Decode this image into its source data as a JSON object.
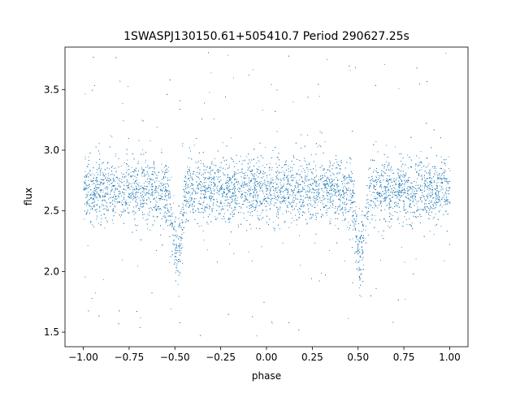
{
  "chart_data": {
    "type": "scatter",
    "title": "1SWASPJ130150.61+505410.7 Period 290627.25s",
    "xlabel": "phase",
    "ylabel": "flux",
    "xlim": [
      -1.1,
      1.1
    ],
    "ylim": [
      1.38,
      3.85
    ],
    "xticks": [
      -1.0,
      -0.75,
      -0.5,
      -0.25,
      0.0,
      0.25,
      0.5,
      0.75,
      1.0
    ],
    "xtick_labels": [
      "−1.00",
      "−0.75",
      "−0.50",
      "−0.25",
      "0.00",
      "0.25",
      "0.50",
      "0.75",
      "1.00"
    ],
    "yticks": [
      1.5,
      2.0,
      2.5,
      3.0,
      3.5
    ],
    "ytick_labels": [
      "1.5",
      "2.0",
      "2.5",
      "3.0",
      "3.5"
    ],
    "grid": false,
    "marker_color": "#1f77b4",
    "series": [
      {
        "description": "phase-folded light curve, mirrored over two cycles",
        "baseline_flux": 2.67,
        "scatter_sigma": 0.13,
        "dips": [
          {
            "phase_center": -0.49,
            "depth_flux_min": 2.0,
            "width": 0.04
          },
          {
            "phase_center": 0.51,
            "depth_flux_min": 2.0,
            "width": 0.04
          }
        ],
        "phase_range": [
          -1.0,
          1.0
        ],
        "flux_range": [
          1.47,
          3.82
        ]
      }
    ]
  }
}
